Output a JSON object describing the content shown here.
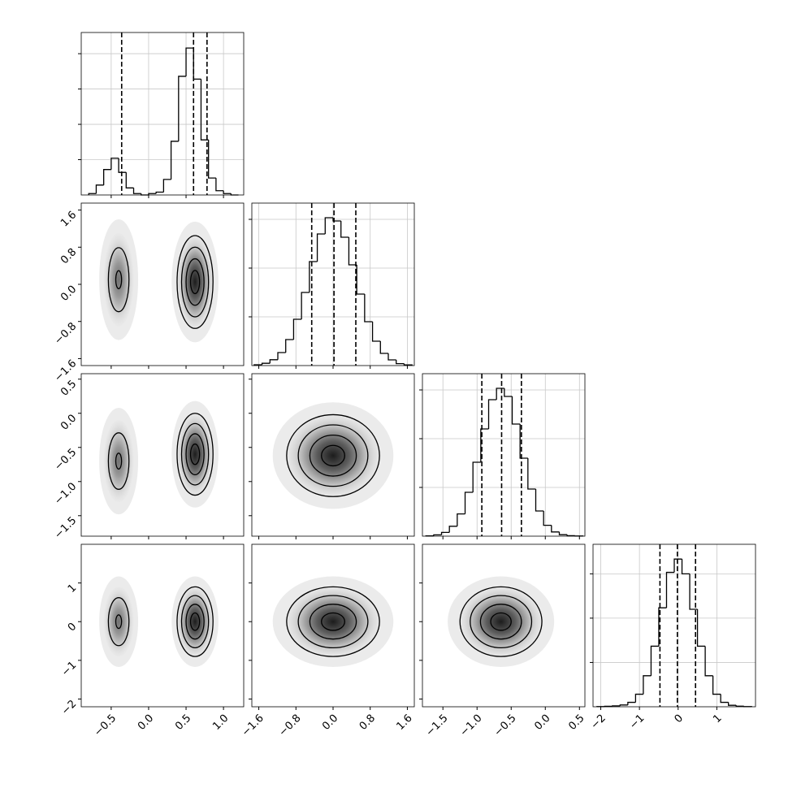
{
  "chart_data": {
    "type": "corner",
    "grid": true,
    "color": "#000000",
    "variables": [
      {
        "lim": [
          -0.9,
          1.27
        ],
        "ticks": [
          {
            "value": -0.5,
            "label": "−0.5"
          },
          {
            "value": 0,
            "label": "0.0"
          },
          0.5,
          {
            "value": 1,
            "label": "1.0"
          }
        ],
        "bins": [
          -0.8,
          -0.7,
          -0.6,
          -0.5,
          -0.4,
          -0.3,
          -0.2,
          -0.1,
          0.0,
          0.1,
          0.2,
          0.3,
          0.4,
          0.5,
          0.6,
          0.7,
          0.8,
          0.9,
          1.0,
          1.1,
          1.2
        ],
        "counts": [
          0.01,
          0.07,
          0.18,
          0.26,
          0.16,
          0.05,
          0.01,
          0.0,
          0.01,
          0.02,
          0.11,
          0.38,
          0.84,
          1.04,
          0.82,
          0.39,
          0.12,
          0.03,
          0.01,
          0.0
        ],
        "hist_ylim": [
          0,
          1.15
        ],
        "hist_yticks": [
          0.25,
          0.5,
          0.75,
          1
        ],
        "quantiles": [
          -0.36,
          0.6,
          0.78
        ]
      },
      {
        "lim": [
          -1.75,
          1.75
        ],
        "ticks": [
          {
            "value": -1.6,
            "label": "−1.6"
          },
          {
            "value": -0.8,
            "label": "−0.8"
          },
          {
            "value": 0,
            "label": "0.0"
          },
          0.8,
          1.6
        ],
        "bins": [
          -1.7,
          -1.53,
          -1.36,
          -1.19,
          -1.02,
          -0.85,
          -0.68,
          -0.51,
          -0.34,
          -0.17,
          0,
          0.17,
          0.34,
          0.51,
          0.68,
          0.85,
          1.02,
          1.19,
          1.36,
          1.53,
          1.7
        ],
        "counts": [
          0.005,
          0.014,
          0.036,
          0.08,
          0.16,
          0.285,
          0.45,
          0.64,
          0.81,
          0.91,
          0.89,
          0.79,
          0.62,
          0.44,
          0.27,
          0.15,
          0.075,
          0.035,
          0.012,
          0.004
        ],
        "hist_ylim": [
          0,
          1
        ],
        "hist_yticks": [
          0.3,
          0.6,
          0.9
        ],
        "quantiles": [
          -0.46,
          0.02,
          0.49
        ]
      },
      {
        "lim": [
          -1.8,
          0.58
        ],
        "ticks": [
          0.5,
          {
            "value": 0,
            "label": "0.0"
          },
          {
            "value": -0.5,
            "label": "−0.5"
          },
          {
            "value": -1,
            "label": "−1.0"
          },
          {
            "value": -1.5,
            "label": "−1.5"
          }
        ],
        "bins": [
          -1.75,
          -1.635,
          -1.52,
          -1.405,
          -1.29,
          -1.175,
          -1.06,
          -0.945,
          -0.83,
          -0.715,
          -0.6,
          -0.485,
          -0.37,
          -0.255,
          -0.14,
          -0.025,
          0.09,
          0.205,
          0.32,
          0.435,
          0.55
        ],
        "counts": [
          0.002,
          0.008,
          0.023,
          0.061,
          0.137,
          0.27,
          0.455,
          0.66,
          0.84,
          0.91,
          0.86,
          0.69,
          0.48,
          0.29,
          0.155,
          0.067,
          0.026,
          0.009,
          0.003,
          0.001
        ],
        "hist_ylim": [
          0,
          1
        ],
        "hist_yticks": [
          0.3,
          0.6,
          0.9
        ],
        "quantiles": [
          -0.93,
          -0.64,
          -0.35
        ]
      },
      {
        "lim": [
          -2.2,
          2.0
        ],
        "ticks": [
          {
            "value": -2,
            "label": "−2"
          },
          {
            "value": -1,
            "label": "−1"
          },
          0,
          1
        ],
        "bins": [
          -2.1,
          -1.9,
          -1.7,
          -1.5,
          -1.3,
          -1.1,
          -0.9,
          -0.7,
          -0.5,
          -0.3,
          -0.1,
          0.1,
          0.3,
          0.5,
          0.7,
          0.9,
          1.1,
          1.3,
          1.5,
          1.7,
          1.9
        ],
        "counts": [
          0.001,
          0.003,
          0.006,
          0.012,
          0.03,
          0.085,
          0.21,
          0.41,
          0.67,
          0.91,
          1.0,
          0.9,
          0.66,
          0.41,
          0.21,
          0.085,
          0.03,
          0.01,
          0.004,
          0.001
        ],
        "hist_ylim": [
          0,
          1.1
        ],
        "hist_yticks": [
          0.3,
          0.6,
          0.9
        ],
        "quantiles": [
          -0.47,
          -0.02,
          0.45
        ]
      }
    ],
    "pairs": [
      [
        {
          "clusters": [
            {
              "center": [
                -0.4,
                0.1
              ],
              "sigma": [
                0.1,
                0.5
              ],
              "weight": 0.35
            },
            {
              "center": [
                0.62,
                0.05
              ],
              "sigma": [
                0.12,
                0.5
              ],
              "weight": 1
            }
          ]
        }
      ],
      [
        {
          "clusters": [
            {
              "center": [
                -0.4,
                -0.7
              ],
              "sigma": [
                0.1,
                0.3
              ],
              "weight": 0.35
            },
            {
              "center": [
                0.62,
                -0.6
              ],
              "sigma": [
                0.12,
                0.3
              ],
              "weight": 1
            }
          ]
        },
        {
          "clusters": [
            {
              "center": [
                0,
                -0.62
              ],
              "sigma": [
                0.5,
                0.3
              ],
              "weight": 1
            }
          ]
        }
      ],
      [
        {
          "clusters": [
            {
              "center": [
                -0.4,
                0
              ],
              "sigma": [
                0.1,
                0.45
              ],
              "weight": 0.35
            },
            {
              "center": [
                0.62,
                0
              ],
              "sigma": [
                0.12,
                0.45
              ],
              "weight": 1
            }
          ]
        },
        {
          "clusters": [
            {
              "center": [
                0,
                0
              ],
              "sigma": [
                0.5,
                0.45
              ],
              "weight": 1
            }
          ]
        },
        {
          "clusters": [
            {
              "center": [
                -0.65,
                0
              ],
              "sigma": [
                0.3,
                0.45
              ],
              "weight": 1
            }
          ]
        }
      ]
    ]
  }
}
